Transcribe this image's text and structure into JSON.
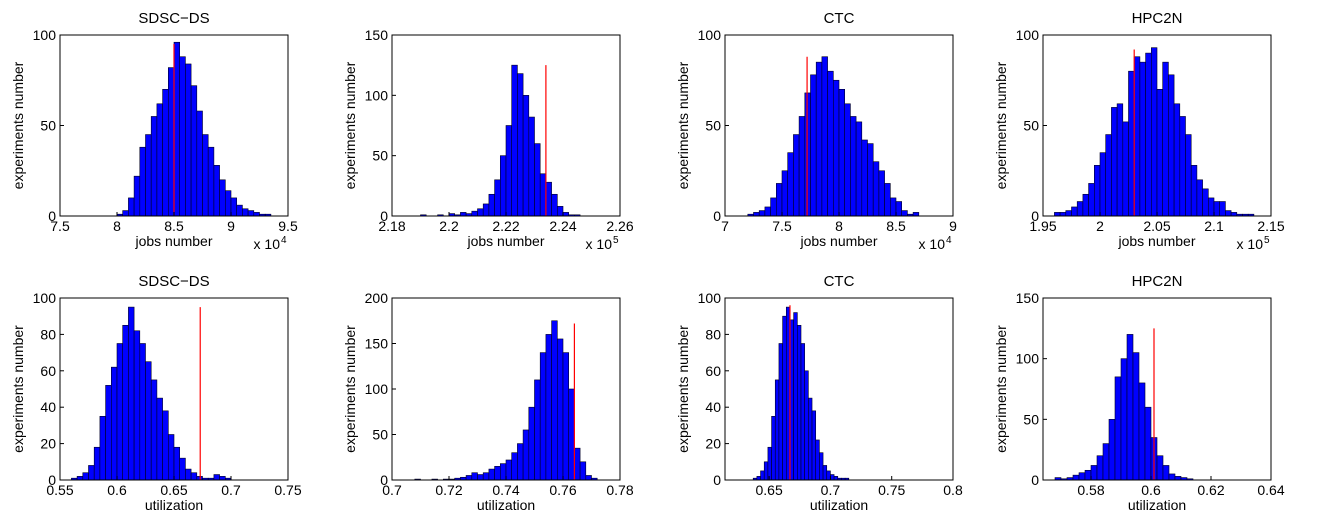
{
  "chart_data": [
    {
      "type": "histogram",
      "title": "SDSC−DS",
      "x_label": "jobs number",
      "y_label": "experiments number",
      "x_multiplier": "x 10",
      "x_multiplier_exp": "4",
      "bins": [
        8.0,
        8.05,
        8.1,
        8.15,
        8.2,
        8.25,
        8.3,
        8.35,
        8.4,
        8.45,
        8.5,
        8.55,
        8.6,
        8.65,
        8.7,
        8.75,
        8.8,
        8.85,
        8.9,
        8.95,
        9.0,
        9.05,
        9.1,
        9.15,
        9.2,
        9.25,
        9.3,
        9.35
      ],
      "values": [
        1,
        3,
        10,
        22,
        38,
        45,
        55,
        62,
        70,
        82,
        96,
        88,
        84,
        72,
        58,
        45,
        38,
        28,
        20,
        14,
        10,
        6,
        4,
        3,
        2,
        1,
        1
      ],
      "color": "#0000ff",
      "xlim": [
        7.5,
        9.5
      ],
      "xticks": [
        7.5,
        8,
        8.5,
        9,
        9.5
      ],
      "ylim": [
        0,
        100
      ],
      "yticks": [
        0,
        50,
        100
      ],
      "reference_line": {
        "x": 8.5,
        "top": 95,
        "color": "#ff0000"
      }
    },
    {
      "type": "histogram",
      "x_label": "jobs number",
      "y_label": "experiments number",
      "x_multiplier": "x 10",
      "x_multiplier_exp": "5",
      "bins": [
        2.19,
        2.192,
        2.194,
        2.196,
        2.198,
        2.2,
        2.202,
        2.204,
        2.206,
        2.208,
        2.21,
        2.212,
        2.214,
        2.216,
        2.218,
        2.22,
        2.222,
        2.224,
        2.226,
        2.228,
        2.23,
        2.232,
        2.234,
        2.236,
        2.238,
        2.24,
        2.242,
        2.244,
        2.246,
        2.248,
        2.25
      ],
      "values": [
        1,
        0,
        0,
        1,
        0,
        2,
        1,
        3,
        2,
        4,
        6,
        10,
        18,
        30,
        50,
        75,
        125,
        118,
        100,
        82,
        60,
        35,
        28,
        18,
        8,
        3,
        1,
        1,
        0,
        0
      ],
      "color": "#0000ff",
      "xlim": [
        2.18,
        2.26
      ],
      "xticks": [
        2.18,
        2.2,
        2.22,
        2.24,
        2.26
      ],
      "ylim": [
        0,
        150
      ],
      "yticks": [
        0,
        50,
        100,
        150
      ],
      "reference_line": {
        "x": 2.234,
        "top": 125,
        "color": "#ff0000"
      }
    },
    {
      "type": "histogram",
      "title": "CTC",
      "x_label": "jobs number",
      "y_label": "experiments number",
      "x_multiplier": "x 10",
      "x_multiplier_exp": "4",
      "bins": [
        7.2,
        7.25,
        7.3,
        7.35,
        7.4,
        7.45,
        7.5,
        7.55,
        7.6,
        7.65,
        7.7,
        7.75,
        7.8,
        7.85,
        7.9,
        7.95,
        8.0,
        8.05,
        8.1,
        8.15,
        8.2,
        8.25,
        8.3,
        8.35,
        8.4,
        8.45,
        8.5,
        8.55,
        8.6,
        8.65,
        8.7
      ],
      "values": [
        1,
        2,
        3,
        5,
        10,
        18,
        25,
        35,
        45,
        55,
        68,
        78,
        85,
        88,
        80,
        75,
        70,
        62,
        55,
        52,
        42,
        40,
        30,
        25,
        18,
        10,
        8,
        3,
        1,
        2
      ],
      "color": "#0000ff",
      "xlim": [
        7,
        9
      ],
      "xticks": [
        7,
        7.5,
        8,
        8.5,
        9
      ],
      "ylim": [
        0,
        100
      ],
      "yticks": [
        0,
        50,
        100
      ],
      "reference_line": {
        "x": 7.72,
        "top": 88,
        "color": "#ff0000"
      }
    },
    {
      "type": "histogram",
      "title": "HPC2N",
      "x_label": "jobs number",
      "y_label": "experiments number",
      "x_multiplier": "x 10",
      "x_multiplier_exp": "5",
      "bins": [
        1.96,
        1.965,
        1.97,
        1.975,
        1.98,
        1.985,
        1.99,
        1.995,
        2.0,
        2.005,
        2.01,
        2.015,
        2.02,
        2.025,
        2.03,
        2.035,
        2.04,
        2.045,
        2.05,
        2.055,
        2.06,
        2.065,
        2.07,
        2.075,
        2.08,
        2.085,
        2.09,
        2.095,
        2.1,
        2.105,
        2.11,
        2.115,
        2.12,
        2.125,
        2.13,
        2.135
      ],
      "values": [
        2,
        2,
        3,
        5,
        8,
        12,
        18,
        28,
        35,
        45,
        60,
        62,
        52,
        80,
        88,
        85,
        90,
        93,
        70,
        85,
        78,
        62,
        55,
        45,
        28,
        20,
        15,
        10,
        8,
        8,
        3,
        2,
        1,
        1,
        1
      ],
      "color": "#0000ff",
      "xlim": [
        1.95,
        2.15
      ],
      "xticks": [
        1.95,
        2,
        2.05,
        2.1,
        2.15
      ],
      "ylim": [
        0,
        100
      ],
      "yticks": [
        0,
        50,
        100
      ],
      "reference_line": {
        "x": 2.03,
        "top": 92,
        "color": "#ff0000"
      }
    },
    {
      "type": "histogram",
      "title": "SDSC−DS",
      "x_label": "utilization",
      "y_label": "experiments number",
      "bins": [
        0.56,
        0.565,
        0.57,
        0.575,
        0.58,
        0.585,
        0.59,
        0.595,
        0.6,
        0.605,
        0.61,
        0.615,
        0.62,
        0.625,
        0.63,
        0.635,
        0.64,
        0.645,
        0.65,
        0.655,
        0.66,
        0.665,
        0.67,
        0.675,
        0.68,
        0.685,
        0.69,
        0.695,
        0.7
      ],
      "values": [
        1,
        2,
        4,
        8,
        18,
        35,
        52,
        62,
        75,
        85,
        95,
        82,
        75,
        65,
        55,
        45,
        38,
        25,
        18,
        12,
        6,
        4,
        2,
        1,
        1,
        3,
        2,
        1
      ],
      "color": "#0000ff",
      "xlim": [
        0.55,
        0.75
      ],
      "xticks": [
        0.55,
        0.6,
        0.65,
        0.7,
        0.75
      ],
      "ylim": [
        0,
        100
      ],
      "yticks": [
        0,
        20,
        40,
        60,
        80,
        100
      ],
      "reference_line": {
        "x": 0.673,
        "top": 95,
        "color": "#ff0000"
      }
    },
    {
      "type": "histogram",
      "x_label": "utilization",
      "y_label": "experiments number",
      "bins": [
        0.708,
        0.71,
        0.712,
        0.714,
        0.716,
        0.718,
        0.72,
        0.722,
        0.724,
        0.726,
        0.728,
        0.73,
        0.732,
        0.734,
        0.736,
        0.738,
        0.74,
        0.742,
        0.744,
        0.746,
        0.748,
        0.75,
        0.752,
        0.754,
        0.756,
        0.758,
        0.76,
        0.762,
        0.764,
        0.766,
        0.768,
        0.77,
        0.772
      ],
      "values": [
        1,
        0,
        0,
        1,
        0,
        1,
        1,
        2,
        3,
        5,
        8,
        6,
        8,
        12,
        15,
        18,
        22,
        30,
        40,
        55,
        80,
        110,
        140,
        160,
        175,
        155,
        140,
        100,
        35,
        20,
        5,
        2
      ],
      "color": "#0000ff",
      "xlim": [
        0.7,
        0.78
      ],
      "xticks": [
        0.7,
        0.72,
        0.74,
        0.76,
        0.78
      ],
      "ylim": [
        0,
        200
      ],
      "yticks": [
        0,
        50,
        100,
        150,
        200
      ],
      "reference_line": {
        "x": 0.764,
        "top": 172,
        "color": "#ff0000"
      }
    },
    {
      "type": "histogram",
      "title": "CTC",
      "x_label": "utilization",
      "y_label": "experiments number",
      "bins": [
        0.637,
        0.64,
        0.643,
        0.646,
        0.649,
        0.652,
        0.655,
        0.658,
        0.661,
        0.664,
        0.667,
        0.67,
        0.673,
        0.676,
        0.679,
        0.682,
        0.685,
        0.688,
        0.691,
        0.694,
        0.697,
        0.7,
        0.703,
        0.706,
        0.709,
        0.712,
        0.715
      ],
      "values": [
        1,
        2,
        5,
        10,
        18,
        35,
        55,
        75,
        90,
        95,
        88,
        92,
        85,
        75,
        60,
        45,
        38,
        22,
        15,
        8,
        5,
        3,
        2,
        1,
        1,
        1
      ],
      "color": "#0000ff",
      "xlim": [
        0.614,
        0.8
      ],
      "xticks": [
        0.65,
        0.7,
        0.75,
        0.8
      ],
      "ylim": [
        0,
        100
      ],
      "yticks": [
        0,
        20,
        40,
        60,
        80,
        100
      ],
      "reference_line": {
        "x": 0.667,
        "top": 96,
        "color": "#ff0000"
      }
    },
    {
      "type": "histogram",
      "title": "HPC2N",
      "x_label": "utilization",
      "y_label": "experiments number",
      "bins": [
        0.568,
        0.57,
        0.572,
        0.574,
        0.576,
        0.578,
        0.58,
        0.582,
        0.584,
        0.586,
        0.588,
        0.59,
        0.592,
        0.594,
        0.596,
        0.598,
        0.6,
        0.602,
        0.604,
        0.606,
        0.608,
        0.61,
        0.612,
        0.614
      ],
      "values": [
        2,
        1,
        2,
        4,
        6,
        8,
        12,
        20,
        30,
        50,
        85,
        100,
        120,
        105,
        80,
        60,
        35,
        20,
        12,
        5,
        3,
        2,
        1
      ],
      "color": "#0000ff",
      "xlim": [
        0.564,
        0.64
      ],
      "xticks": [
        0.58,
        0.6,
        0.62,
        0.64
      ],
      "ylim": [
        0,
        150
      ],
      "yticks": [
        0,
        50,
        100,
        150
      ],
      "reference_line": {
        "x": 0.601,
        "top": 125,
        "color": "#ff0000"
      }
    }
  ]
}
